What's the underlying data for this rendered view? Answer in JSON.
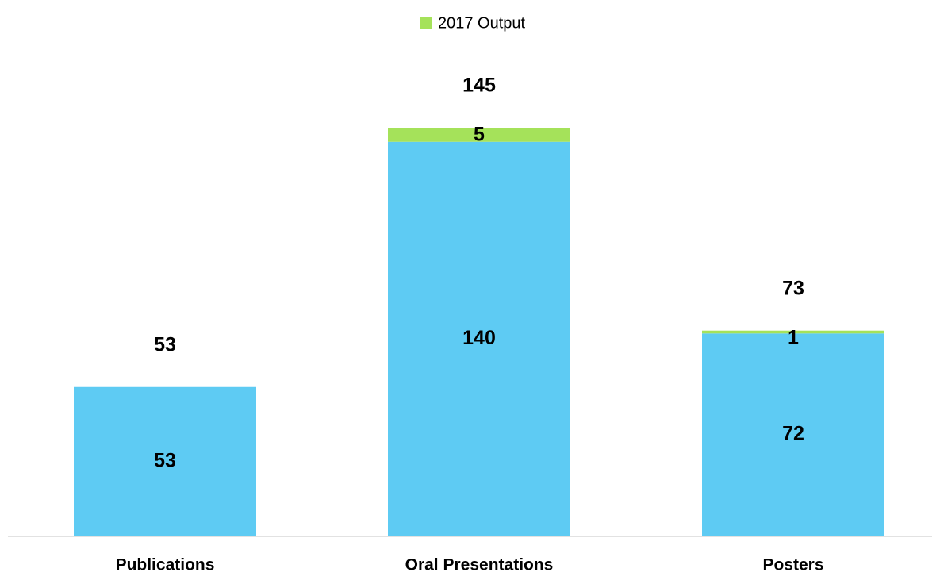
{
  "chart_data": {
    "type": "stacked-bar",
    "categories": [
      "Publications",
      "Oral Presentations",
      "Posters"
    ],
    "series": [
      {
        "color": "#5ecbf3",
        "values": [
          53,
          140,
          72
        ]
      },
      {
        "name": "2017 Output",
        "color": "#a5e25a",
        "values": [
          null,
          5,
          1
        ]
      }
    ],
    "totals": [
      53,
      145,
      73
    ],
    "legend": "top"
  }
}
